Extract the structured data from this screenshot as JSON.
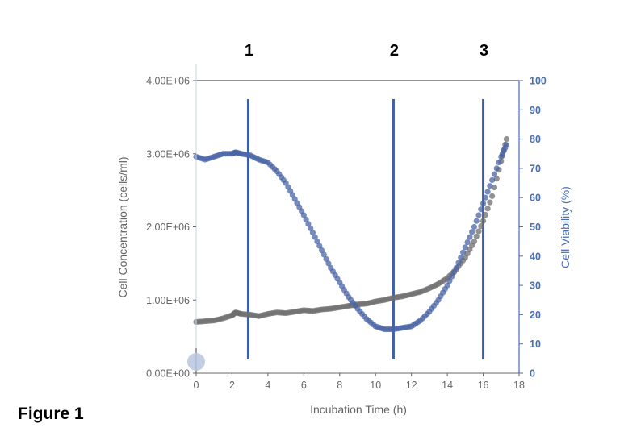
{
  "figure_label": "Figure 1",
  "colors": {
    "concentration": "#6e6e6e",
    "viability": "#4a64a6",
    "marker_line": "#3f5fa8",
    "right_axis": "#4a6fb0",
    "axis_text": "#666666"
  },
  "chart_data": {
    "type": "scatter",
    "xlabel": "Incubation Time (h)",
    "ylabel_left": "Cell Concentration (cells/ml)",
    "ylabel_right": "Cell Viability (%)",
    "xlim": [
      0,
      18
    ],
    "ylim_left": [
      0,
      4000000
    ],
    "ylim_right": [
      0,
      100
    ],
    "x_ticks": [
      "0",
      "2",
      "4",
      "6",
      "8",
      "10",
      "12",
      "14",
      "16",
      "18"
    ],
    "y_left_ticks": [
      "0.00E+00",
      "1.00E+06",
      "2.00E+06",
      "3.00E+06",
      "4.00E+06"
    ],
    "y_right_ticks": [
      "0",
      "10",
      "20",
      "30",
      "40",
      "50",
      "60",
      "70",
      "80",
      "90",
      "100"
    ],
    "grid": false,
    "markers": [
      {
        "label": "1",
        "x": 2.9
      },
      {
        "label": "2",
        "x": 11.0
      },
      {
        "label": "3",
        "x": 16.0
      }
    ],
    "series": [
      {
        "axis": "left",
        "x": [
          0,
          0.5,
          1,
          1.5,
          2,
          2.2,
          2.5,
          3,
          3.5,
          4,
          4.5,
          5,
          5.5,
          6,
          6.5,
          7,
          7.5,
          8,
          8.5,
          9,
          9.5,
          10,
          10.5,
          11,
          11.5,
          12,
          12.5,
          13,
          13.5,
          14,
          14.5,
          15,
          15.5,
          16,
          16.5,
          17,
          17.3
        ],
        "y": [
          700000,
          710000,
          720000,
          750000,
          790000,
          830000,
          810000,
          800000,
          780000,
          810000,
          830000,
          820000,
          840000,
          860000,
          850000,
          870000,
          880000,
          900000,
          920000,
          940000,
          950000,
          980000,
          1000000,
          1030000,
          1050000,
          1080000,
          1110000,
          1160000,
          1220000,
          1300000,
          1420000,
          1580000,
          1800000,
          2080000,
          2420000,
          2900000,
          3200000
        ]
      },
      {
        "axis": "right",
        "x": [
          0,
          0.5,
          1,
          1.5,
          2,
          2.2,
          2.5,
          3,
          3.5,
          4,
          4.5,
          5,
          5.5,
          6,
          6.5,
          7,
          7.5,
          8,
          8.5,
          9,
          9.5,
          10,
          10.5,
          11,
          11.5,
          12,
          12.5,
          13,
          13.5,
          14,
          14.5,
          15,
          15.5,
          16,
          16.5,
          17,
          17.3
        ],
        "y": [
          74,
          73,
          74,
          75,
          75,
          75.5,
          75,
          74.5,
          73,
          72,
          69,
          65,
          59.5,
          54,
          48,
          42,
          36,
          31,
          26,
          22,
          18.5,
          16,
          15,
          15,
          15.5,
          16,
          18,
          21,
          25,
          30,
          36,
          43,
          50,
          58,
          66,
          74,
          78
        ]
      }
    ]
  }
}
